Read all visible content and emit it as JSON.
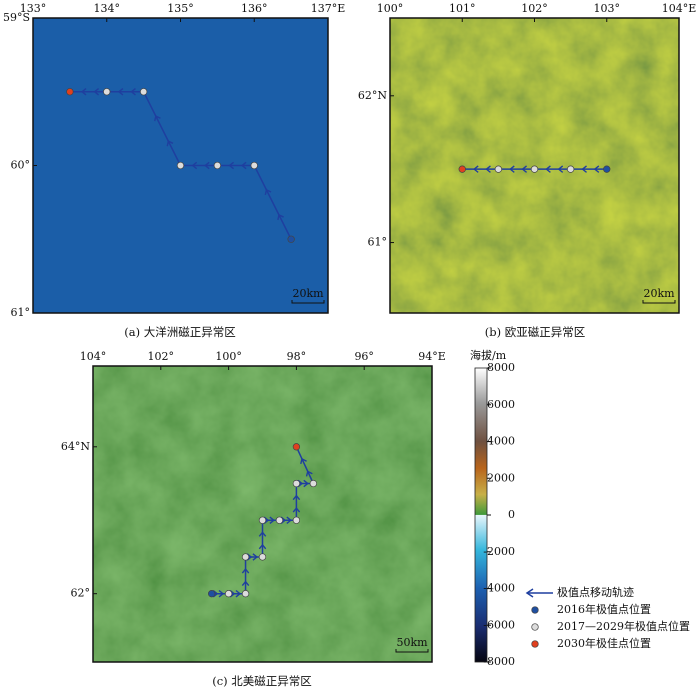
{
  "panels": [
    {
      "caption": "(a) 大洋洲磁正异常区",
      "xlim": [
        133,
        137
      ],
      "ylim": [
        -61,
        -59
      ],
      "xticks": [
        {
          "value": 133,
          "label": "133°"
        },
        {
          "value": 134,
          "label": "134°"
        },
        {
          "value": 135,
          "label": "135°"
        },
        {
          "value": 136,
          "label": "136°"
        },
        {
          "value": 137,
          "label": "137°E"
        }
      ],
      "yticks": [
        {
          "value": -59,
          "label": "59°S"
        },
        {
          "value": -60,
          "label": "60°"
        },
        {
          "value": -61,
          "label": "61°"
        }
      ],
      "scale": "20km",
      "track": {
        "lon": [
          136.5,
          136,
          135.5,
          135,
          134.5,
          134,
          133.5
        ],
        "lat": [
          -60.5,
          -60,
          -60,
          -60,
          -59.5,
          -59.5,
          -59.5
        ]
      }
    },
    {
      "caption": "(b) 欧亚磁正异常区",
      "xlim": [
        100,
        104
      ],
      "ylim": [
        60.52,
        62.53
      ],
      "xticks": [
        {
          "value": 100,
          "label": "100°"
        },
        {
          "value": 101,
          "label": "101°"
        },
        {
          "value": 102,
          "label": "102°"
        },
        {
          "value": 103,
          "label": "103°"
        },
        {
          "value": 104,
          "label": "104°E"
        }
      ],
      "yticks": [
        {
          "value": 62,
          "label": "62°N"
        },
        {
          "value": 61,
          "label": "61°"
        }
      ],
      "scale": "20km",
      "track": {
        "lon": [
          103,
          102.5,
          102,
          101.5,
          101
        ],
        "lat": [
          61.5,
          61.5,
          61.5,
          61.5,
          61.5
        ]
      }
    },
    {
      "caption": "(c) 北美磁正异常区",
      "xlim": [
        104,
        94
      ],
      "ylim": [
        61.07,
        65.1
      ],
      "xticks": [
        {
          "value": 104,
          "label": "104°"
        },
        {
          "value": 102,
          "label": "102°"
        },
        {
          "value": 100,
          "label": "100°"
        },
        {
          "value": 98,
          "label": "98°"
        },
        {
          "value": 96,
          "label": "96°"
        },
        {
          "value": 94,
          "label": "94°E"
        }
      ],
      "yticks": [
        {
          "value": 64,
          "label": "64°N"
        },
        {
          "value": 62,
          "label": "62°"
        }
      ],
      "scale": "50km",
      "track": {
        "lon": [
          100.5,
          100,
          99.5,
          99.5,
          99,
          99,
          98.5,
          98,
          98,
          97.5,
          98
        ],
        "lat": [
          62,
          62,
          62,
          62.5,
          62.5,
          63,
          63,
          63,
          63.5,
          63.5,
          64
        ]
      }
    }
  ],
  "colorbar": {
    "title": "海拔/m",
    "lim": [
      -8000,
      8000
    ],
    "ticks": [
      -8000,
      -6000,
      -4000,
      -2000,
      0,
      2000,
      4000,
      6000,
      8000
    ]
  },
  "legend": {
    "track": "极值点移动轨迹",
    "start": "2016年极值点位置",
    "mid": "2017—2029年极值点位置",
    "end": "2030年极佳点位置"
  }
}
